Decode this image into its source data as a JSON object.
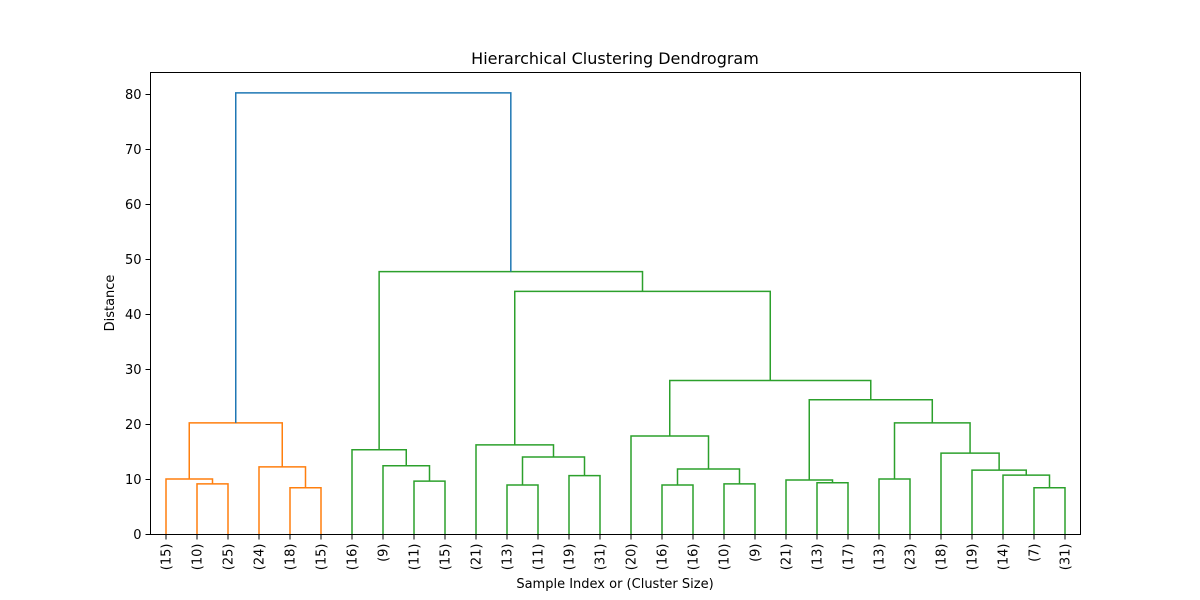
{
  "chart_data": {
    "type": "dendrogram",
    "title": "Hierarchical Clustering Dendrogram",
    "xlabel": "Sample Index or (Cluster Size)",
    "ylabel": "Distance",
    "ylim": [
      0,
      84
    ],
    "yticks": [
      0,
      10,
      20,
      30,
      40,
      50,
      60,
      70,
      80
    ],
    "grid": false,
    "leaf_labels": [
      "(15)",
      "(10)",
      "(25)",
      "(24)",
      "(18)",
      "(15)",
      "(16)",
      "(9)",
      "(11)",
      "(15)",
      "(21)",
      "(13)",
      "(11)",
      "(19)",
      "(31)",
      "(20)",
      "(16)",
      "(16)",
      "(10)",
      "(9)",
      "(21)",
      "(13)",
      "(17)",
      "(13)",
      "(23)",
      "(18)",
      "(19)",
      "(14)",
      "(7)",
      "(31)"
    ],
    "colors": {
      "orange": "#ff7f0e",
      "green": "#2ca02c",
      "blue": "#1f77b4"
    },
    "merges": [
      {
        "left": {
          "leaf": 1
        },
        "right": {
          "leaf": 2
        },
        "height": 9.2,
        "color": "orange"
      },
      {
        "left": {
          "leaf": 0
        },
        "right": {
          "node": 0
        },
        "height": 10.1,
        "color": "orange"
      },
      {
        "left": {
          "leaf": 4
        },
        "right": {
          "leaf": 5
        },
        "height": 8.5,
        "color": "orange"
      },
      {
        "left": {
          "leaf": 3
        },
        "right": {
          "node": 2
        },
        "height": 12.3,
        "color": "orange"
      },
      {
        "left": {
          "node": 1
        },
        "right": {
          "node": 3
        },
        "height": 20.3,
        "color": "orange"
      },
      {
        "left": {
          "leaf": 8
        },
        "right": {
          "leaf": 9
        },
        "height": 9.7,
        "color": "green"
      },
      {
        "left": {
          "leaf": 7
        },
        "right": {
          "node": 5
        },
        "height": 12.5,
        "color": "green"
      },
      {
        "left": {
          "leaf": 6
        },
        "right": {
          "node": 6
        },
        "height": 15.4,
        "color": "green"
      },
      {
        "left": {
          "leaf": 11
        },
        "right": {
          "leaf": 12
        },
        "height": 9.0,
        "color": "green"
      },
      {
        "left": {
          "leaf": 13
        },
        "right": {
          "leaf": 14
        },
        "height": 10.7,
        "color": "green"
      },
      {
        "left": {
          "node": 8
        },
        "right": {
          "node": 9
        },
        "height": 14.1,
        "color": "green"
      },
      {
        "left": {
          "leaf": 10
        },
        "right": {
          "node": 10
        },
        "height": 16.3,
        "color": "green"
      },
      {
        "left": {
          "leaf": 16
        },
        "right": {
          "leaf": 17
        },
        "height": 9.0,
        "color": "green"
      },
      {
        "left": {
          "leaf": 18
        },
        "right": {
          "leaf": 19
        },
        "height": 9.2,
        "color": "green"
      },
      {
        "left": {
          "node": 12
        },
        "right": {
          "node": 13
        },
        "height": 11.9,
        "color": "green"
      },
      {
        "left": {
          "leaf": 15
        },
        "right": {
          "node": 14
        },
        "height": 17.9,
        "color": "green"
      },
      {
        "left": {
          "leaf": 21
        },
        "right": {
          "leaf": 22
        },
        "height": 9.4,
        "color": "green"
      },
      {
        "left": {
          "leaf": 20
        },
        "right": {
          "node": 16
        },
        "height": 9.9,
        "color": "green"
      },
      {
        "left": {
          "leaf": 23
        },
        "right": {
          "leaf": 24
        },
        "height": 10.1,
        "color": "green"
      },
      {
        "left": {
          "leaf": 28
        },
        "right": {
          "leaf": 29
        },
        "height": 8.5,
        "color": "green"
      },
      {
        "left": {
          "leaf": 27
        },
        "right": {
          "node": 19
        },
        "height": 10.8,
        "color": "green"
      },
      {
        "left": {
          "leaf": 26
        },
        "right": {
          "node": 20
        },
        "height": 11.7,
        "color": "green"
      },
      {
        "left": {
          "leaf": 25
        },
        "right": {
          "node": 21
        },
        "height": 14.8,
        "color": "green"
      },
      {
        "left": {
          "node": 18
        },
        "right": {
          "node": 22
        },
        "height": 20.3,
        "color": "green"
      },
      {
        "left": {
          "node": 17
        },
        "right": {
          "node": 23
        },
        "height": 24.5,
        "color": "green"
      },
      {
        "left": {
          "node": 15
        },
        "right": {
          "node": 24
        },
        "height": 28.0,
        "color": "green"
      },
      {
        "left": {
          "node": 11
        },
        "right": {
          "node": 25
        },
        "height": 44.2,
        "color": "green"
      },
      {
        "left": {
          "node": 7
        },
        "right": {
          "node": 26
        },
        "height": 47.8,
        "color": "green"
      },
      {
        "left": {
          "node": 4
        },
        "right": {
          "node": 27
        },
        "height": 80.3,
        "color": "blue"
      }
    ]
  }
}
